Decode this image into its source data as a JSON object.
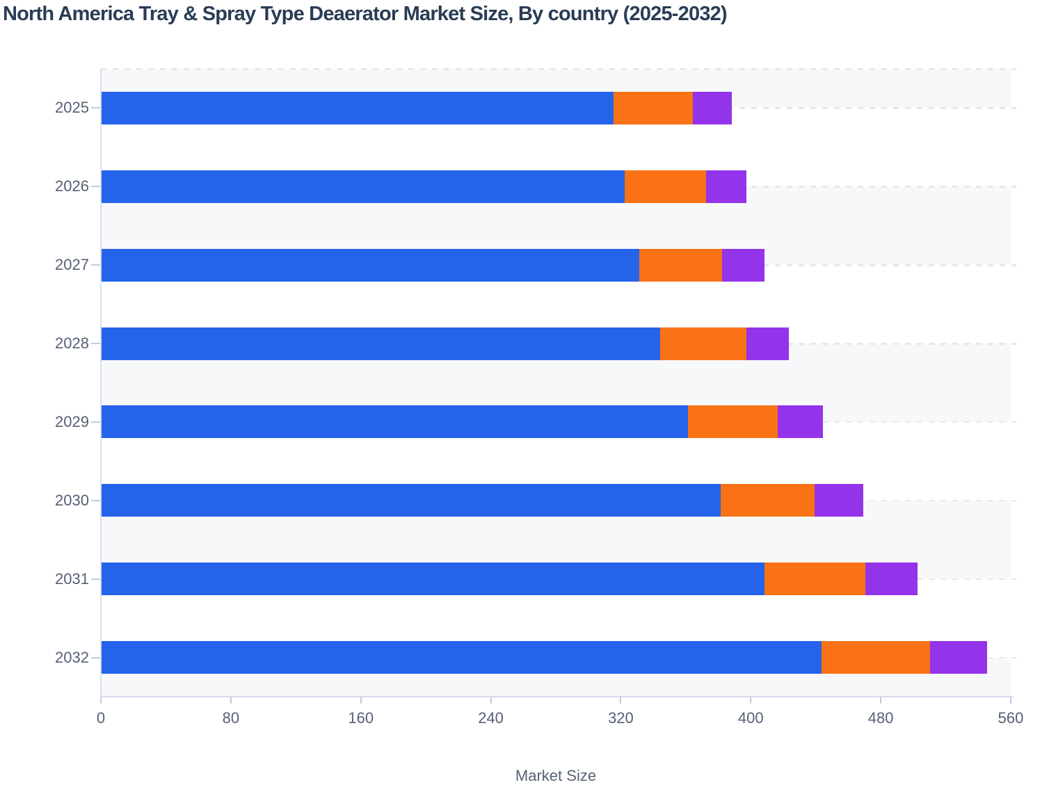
{
  "title": "North America Tray & Spray Type Deaerator Market Size, By country (2025-2032)",
  "colors": {
    "title_text": "#293c55",
    "axis_text": "#566076",
    "stripe": "#f7f8fa",
    "grid_dash": "#e6e8ea",
    "axis_line": "#d5daeb",
    "tick_line": "#c3cadd",
    "plot_border": "#d9def0",
    "bar_blue": "#2563eb",
    "bar_orange": "#f97316",
    "bar_purple": "#9333ea"
  },
  "chart_data": {
    "type": "bar",
    "orientation": "horizontal",
    "stacked": true,
    "title": "North America Tray & Spray Type Deaerator Market Size, By country (2025-2032)",
    "categories": [
      "2025",
      "2026",
      "2027",
      "2028",
      "2029",
      "2030",
      "2031",
      "2032"
    ],
    "series": [
      {
        "name": "series-blue",
        "color": "#2563eb",
        "values": [
          315,
          322,
          331,
          344,
          361,
          381,
          408,
          443
        ]
      },
      {
        "name": "series-orange",
        "color": "#f97316",
        "values": [
          49,
          50,
          51,
          53,
          55,
          58,
          62,
          67
        ]
      },
      {
        "name": "series-purple",
        "color": "#9333ea",
        "values": [
          24,
          25,
          26,
          26,
          28,
          30,
          32,
          35
        ]
      }
    ],
    "totals": [
      388,
      397,
      408,
      423,
      444,
      469,
      502,
      545
    ],
    "xlabel": "Market Size",
    "x_ticks": [
      0,
      80,
      160,
      240,
      320,
      400,
      480,
      560
    ],
    "xlim": [
      0,
      560
    ],
    "legend": "none",
    "grid": "horizontal-dashed-at-category-centers",
    "background_stripes": "alternating"
  }
}
